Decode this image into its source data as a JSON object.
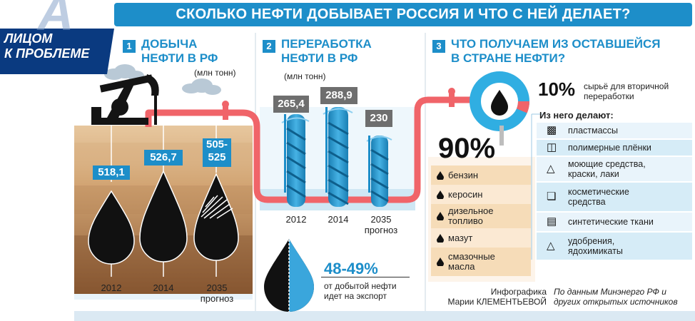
{
  "header": {
    "title": "СКОЛЬКО НЕФТИ ДОБЫВАЕТ РОССИЯ И ЧТО С НЕЙ ДЕЛАЕТ?"
  },
  "badge": {
    "line1": "ЛИЦОМ",
    "line2": "К ПРОБЛЕМЕ"
  },
  "section1": {
    "num": "1",
    "title_line1": "ДОБЫЧА",
    "title_line2": "НЕФТИ В РФ",
    "unit": "(млн тонн)",
    "drops": [
      {
        "value": "518,1",
        "year": "2012",
        "year2": ""
      },
      {
        "value": "526,7",
        "year": "2014",
        "year2": ""
      },
      {
        "value_line1": "505-",
        "value_line2": "525",
        "year": "2035",
        "year2": "прогноз"
      }
    ]
  },
  "section2": {
    "num": "2",
    "title_line1": "ПЕРЕРАБОТКА",
    "title_line2": "НЕФТИ В РФ",
    "unit": "(млн тонн)",
    "columns": [
      {
        "value": "265,4",
        "year": "2012",
        "year2": ""
      },
      {
        "value": "288,9",
        "year": "2014",
        "year2": ""
      },
      {
        "value": "230",
        "year": "2035",
        "year2": "прогноз"
      }
    ],
    "export": {
      "percent": "48-49%",
      "text_line1": "от добытой нефти",
      "text_line2": "идет на экспорт",
      "share": 0.485
    }
  },
  "section3": {
    "num": "3",
    "title_line1": "ЧТО ПОЛУЧАЕМ ИЗ ОСТАВШЕЙСЯ",
    "title_line2": "В СТРАНЕ НЕФТИ?",
    "share_10": {
      "percent": "10%",
      "text_line1": "сырьё для вторичной",
      "text_line2": "переработки"
    },
    "share_90": {
      "percent": "90%"
    },
    "fuels": [
      {
        "line1": "бензин",
        "line2": ""
      },
      {
        "line1": "керосин",
        "line2": ""
      },
      {
        "line1": "дизельное",
        "line2": "топливо"
      },
      {
        "line1": "мазут",
        "line2": ""
      },
      {
        "line1": "смазочные",
        "line2": "масла"
      }
    ],
    "derivatives_header": "Из него делают:",
    "derivatives": [
      {
        "line1": "пластмассы",
        "line2": "",
        "icon": "bottle-icon"
      },
      {
        "line1": "полимерные плёнки",
        "line2": "",
        "icon": "bag-icon"
      },
      {
        "line1": "моющие средства,",
        "line2": "краски, лаки",
        "icon": "spray-icon"
      },
      {
        "line1": "косметические",
        "line2": "средства",
        "icon": "brush-icon"
      },
      {
        "line1": "синтетические ткани",
        "line2": "",
        "icon": "shirt-icon"
      },
      {
        "line1": "удобрения,",
        "line2": "ядохимикаты",
        "icon": "flask-icon"
      }
    ]
  },
  "credits": {
    "author_line1": "Инфографика",
    "author_line2": "Марии КЛЕМЕНТЬЕВОЙ",
    "source_line1": "По данным Минэнерго РФ и",
    "source_line2": "других открытых источников"
  },
  "colors": {
    "accent": "#1d8ec9",
    "pipe": "#f06469",
    "soil_dark": "#8a5a33",
    "soil_light": "#d9b48a",
    "light_blue": "#d6ecf7",
    "beige": "#f6dcb8"
  }
}
